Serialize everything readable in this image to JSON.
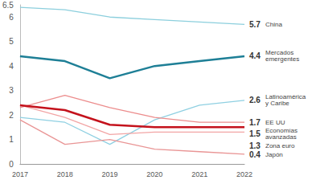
{
  "chart_data": {
    "type": "line",
    "categories": [
      "2017",
      "2018",
      "2019",
      "2020",
      "2021",
      "2022"
    ],
    "series": [
      {
        "name": "China",
        "color": "#8ccfdd",
        "line_style": "thin",
        "values": [
          6.4,
          6.3,
          6.0,
          5.9,
          5.8,
          5.7
        ]
      },
      {
        "name": "Mercados\nemergentes",
        "color": "#1e7f96",
        "line_style": "thick",
        "values": [
          4.4,
          4.2,
          3.5,
          4.0,
          4.2,
          4.4
        ]
      },
      {
        "name": "Latinoamérica\ny Caribe",
        "color": "#8fd0e2",
        "line_style": "thin",
        "values": [
          1.9,
          1.7,
          0.8,
          1.8,
          2.4,
          2.6
        ]
      },
      {
        "name": "EE UU",
        "color": "#ec8c8c",
        "line_style": "thin",
        "values": [
          2.3,
          2.8,
          2.3,
          1.9,
          1.7,
          1.7
        ]
      },
      {
        "name": "Economías\navanzadas",
        "color": "#c4121c",
        "line_style": "thick",
        "values": [
          2.4,
          2.2,
          1.6,
          1.5,
          1.5,
          1.5
        ]
      },
      {
        "name": "Zona euro",
        "color": "#f2a5a5",
        "line_style": "thin",
        "values": [
          2.4,
          1.9,
          1.2,
          1.3,
          1.3,
          1.3
        ]
      },
      {
        "name": "Japón",
        "color": "#e99595",
        "line_style": "thin",
        "values": [
          1.8,
          0.8,
          1.0,
          0.6,
          0.5,
          0.4
        ]
      }
    ],
    "ylim": [
      0,
      6.5
    ],
    "yticks": [
      0,
      1,
      2,
      3,
      4,
      5,
      6
    ],
    "grid": false
  }
}
